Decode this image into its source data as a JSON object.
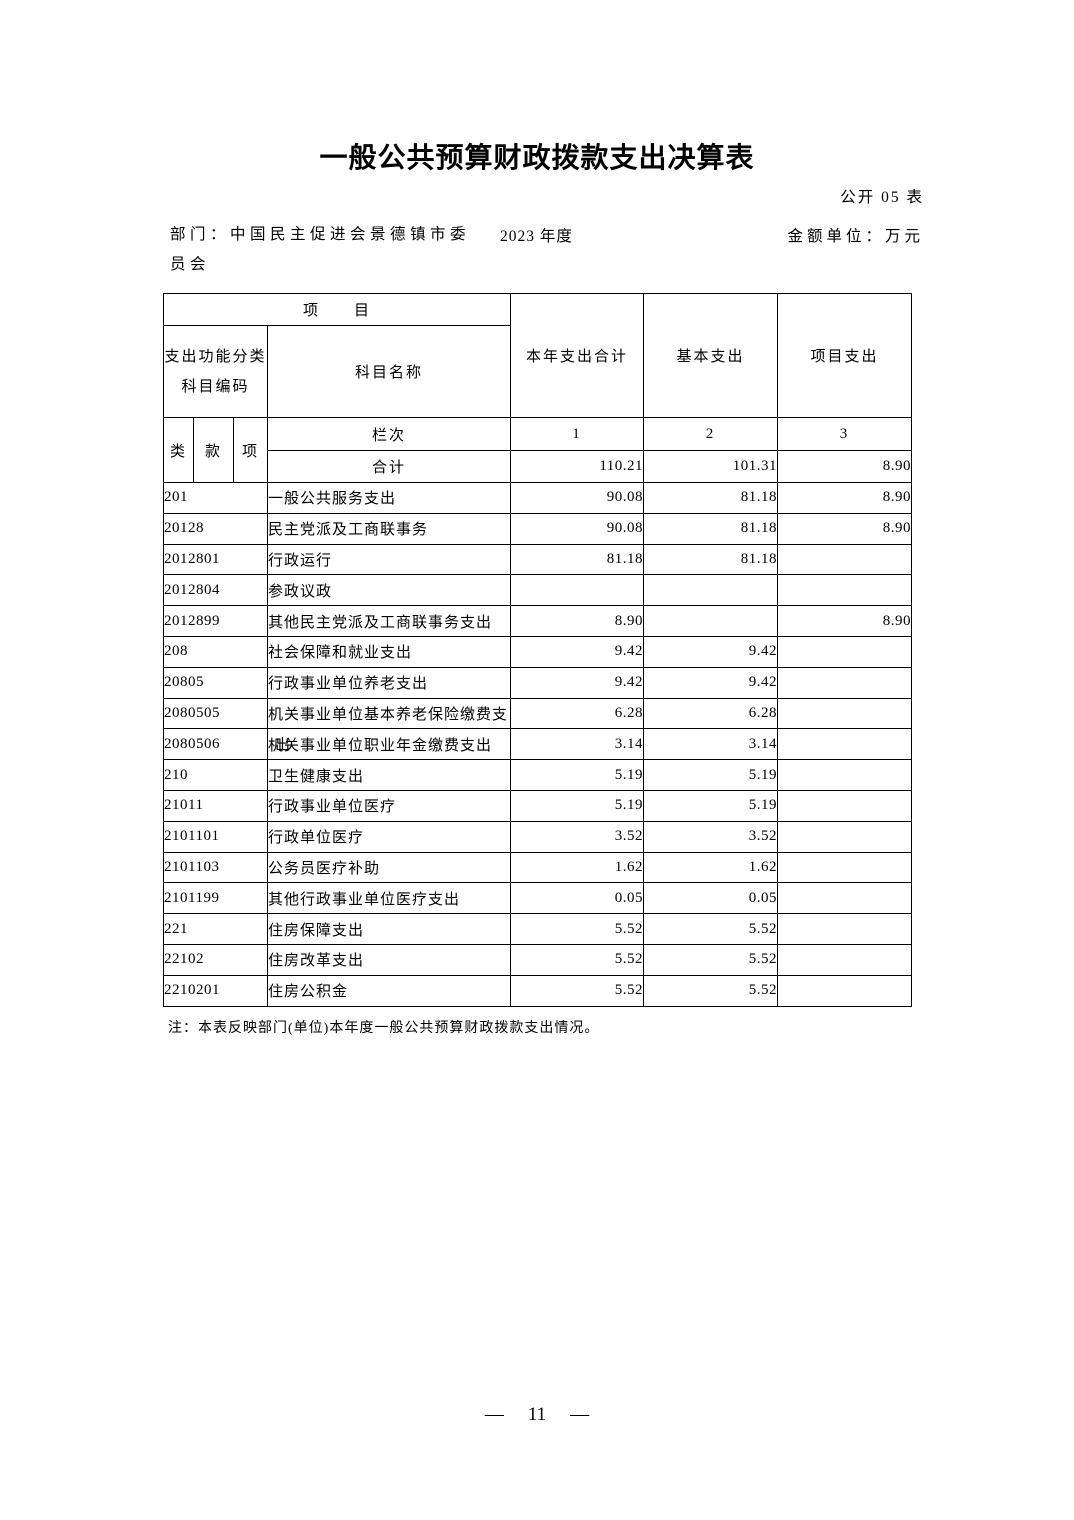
{
  "page": {
    "title": "一般公共预算财政拨款支出决算表",
    "doc_code": "公开 05 表",
    "department": {
      "line1": "部门：中国民主促进会景德镇市委",
      "line2": "员会"
    },
    "year": "2023 年度",
    "unit_label": "金额单位：万元",
    "note": "注：本表反映部门(单位)本年度一般公共预算财政拨款支出情况。",
    "page_number": {
      "left_dash": "—",
      "value": "11",
      "right_dash": "—"
    }
  },
  "table": {
    "header": {
      "project_group": "项　　目",
      "code_group_line1": "支出功能分类",
      "code_group_line2": "科目编码",
      "subject_name": "科目名称",
      "col_year_total": "本年支出合计",
      "col_basic": "基本支出",
      "col_project": "项目支出",
      "col_class": "类",
      "col_section": "款",
      "col_item": "项",
      "rank_label": "栏次",
      "rank_numbers": [
        "1",
        "2",
        "3"
      ]
    },
    "total_row": {
      "name": "合计",
      "total": "110.21",
      "basic": "101.31",
      "project": "8.90"
    },
    "rows": [
      {
        "code": "201",
        "name": "一般公共服务支出",
        "total": "90.08",
        "basic": "81.18",
        "project": "8.90"
      },
      {
        "code": "20128",
        "name": "民主党派及工商联事务",
        "total": "90.08",
        "basic": "81.18",
        "project": "8.90"
      },
      {
        "code": "2012801",
        "name": "行政运行",
        "total": "81.18",
        "basic": "81.18",
        "project": ""
      },
      {
        "code": "2012804",
        "name": "参政议政",
        "total": "",
        "basic": "",
        "project": ""
      },
      {
        "code": "2012899",
        "name": "其他民主党派及工商联事务支出",
        "total": "8.90",
        "basic": "",
        "project": "8.90"
      },
      {
        "code": "208",
        "name": "社会保障和就业支出",
        "total": "9.42",
        "basic": "9.42",
        "project": ""
      },
      {
        "code": "20805",
        "name": "行政事业单位养老支出",
        "total": "9.42",
        "basic": "9.42",
        "project": ""
      },
      {
        "code": "2080505",
        "name": "机关事业单位基本养老保险缴费支",
        "total": "6.28",
        "basic": "6.28",
        "project": ""
      },
      {
        "code": "2080506",
        "name": "机关事业单位职业年金缴费支出",
        "overlap": "出",
        "total": "3.14",
        "basic": "3.14",
        "project": ""
      },
      {
        "code": "210",
        "name": "卫生健康支出",
        "total": "5.19",
        "basic": "5.19",
        "project": ""
      },
      {
        "code": "21011",
        "name": "行政事业单位医疗",
        "total": "5.19",
        "basic": "5.19",
        "project": ""
      },
      {
        "code": "2101101",
        "name": "行政单位医疗",
        "total": "3.52",
        "basic": "3.52",
        "project": ""
      },
      {
        "code": "2101103",
        "name": "公务员医疗补助",
        "total": "1.62",
        "basic": "1.62",
        "project": ""
      },
      {
        "code": "2101199",
        "name": "其他行政事业单位医疗支出",
        "total": "0.05",
        "basic": "0.05",
        "project": ""
      },
      {
        "code": "221",
        "name": "住房保障支出",
        "total": "5.52",
        "basic": "5.52",
        "project": ""
      },
      {
        "code": "22102",
        "name": "住房改革支出",
        "total": "5.52",
        "basic": "5.52",
        "project": ""
      },
      {
        "code": "2210201",
        "name": "住房公积金",
        "total": "5.52",
        "basic": "5.52",
        "project": ""
      }
    ]
  }
}
